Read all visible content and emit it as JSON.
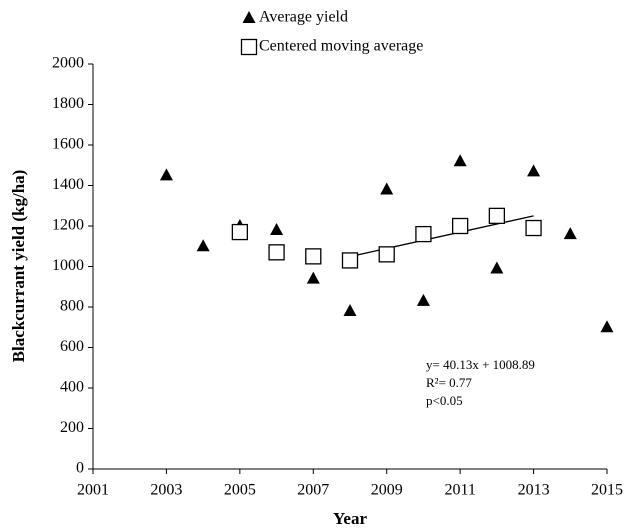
{
  "chart_data": {
    "type": "scatter",
    "x_label": "Year",
    "y_label": "Blackcurrant yield (kg/ha)",
    "xlim": [
      2001,
      2015
    ],
    "xticks": [
      2001,
      2003,
      2005,
      2007,
      2009,
      2011,
      2013,
      2015
    ],
    "ylim": [
      0,
      2000
    ],
    "yticks": [
      0,
      200,
      400,
      600,
      800,
      1000,
      1200,
      1400,
      1600,
      1800,
      2000
    ],
    "grid": false,
    "series": [
      {
        "name": "Average yield",
        "marker": "triangle",
        "color": "#000000",
        "x": [
          2003,
          2004,
          2005,
          2006,
          2007,
          2008,
          2009,
          2010,
          2011,
          2012,
          2013,
          2014,
          2015
        ],
        "values": [
          1450,
          1100,
          1200,
          1180,
          940,
          780,
          1380,
          830,
          1520,
          990,
          1470,
          1160,
          700
        ]
      },
      {
        "name": "Centered moving average",
        "marker": "square",
        "color": "#000000",
        "x": [
          2005,
          2006,
          2007,
          2008,
          2009,
          2010,
          2011,
          2012,
          2013
        ],
        "values": [
          1170,
          1070,
          1050,
          1030,
          1060,
          1160,
          1200,
          1250,
          1190
        ]
      }
    ],
    "trendline": {
      "x": [
        2008,
        2013
      ],
      "values": [
        1049,
        1250
      ],
      "color": "#000000"
    },
    "annotations": [
      "y= 40.13x + 1008.89",
      "R²= 0.77",
      "p<0.05"
    ]
  }
}
